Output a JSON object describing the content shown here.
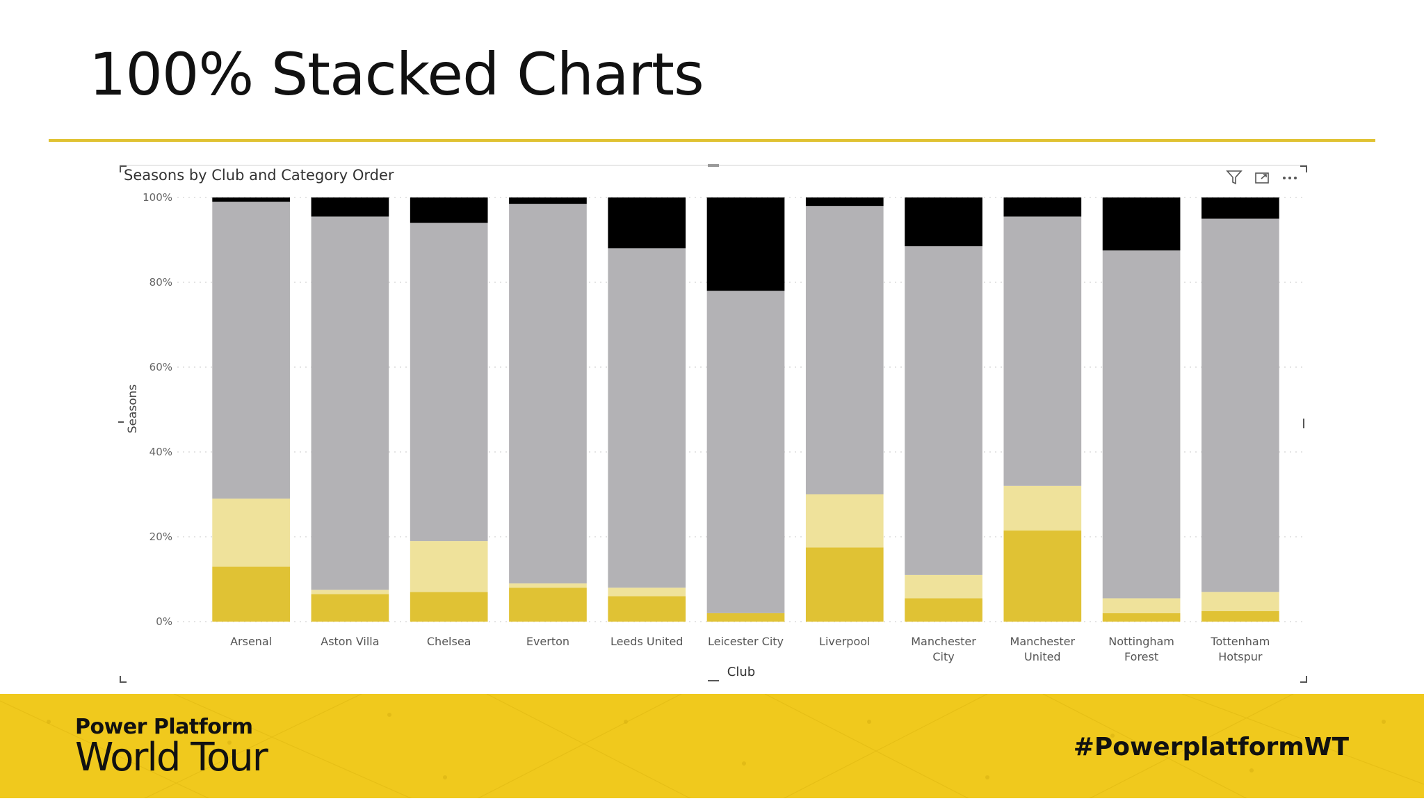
{
  "slide": {
    "title": "100% Stacked Charts",
    "hashtag": "#PowerplatformWT",
    "brand": {
      "line1": "Power Platform",
      "line2": "World Tour"
    },
    "colors": {
      "accent": "#f0c91d",
      "rule": "#e0c232"
    }
  },
  "visual": {
    "title": "Seasons by Club and Category Order",
    "header_icons": [
      "filter-icon",
      "focus-mode-icon",
      "more-options-icon"
    ]
  },
  "chart_data": {
    "type": "bar",
    "stacked": "100%",
    "xlabel": "Club",
    "ylabel": "Seasons",
    "ylim": [
      0,
      100
    ],
    "yticks": [
      "0%",
      "20%",
      "40%",
      "60%",
      "80%",
      "100%"
    ],
    "grid": true,
    "categories": [
      "Arsenal",
      "Aston Villa",
      "Chelsea",
      "Everton",
      "Leeds United",
      "Leicester City",
      "Liverpool",
      "Manchester City",
      "Manchester United",
      "Nottingham Forest",
      "Tottenham Hotspur"
    ],
    "series": [
      {
        "values": [
          13,
          6.5,
          7,
          8,
          6,
          2,
          17.5,
          5.5,
          21.5,
          2,
          2.5
        ],
        "color": "#e0c234"
      },
      {
        "values": [
          16,
          1,
          12,
          1,
          2,
          0,
          12.5,
          5.5,
          10.5,
          3.5,
          4.5
        ],
        "color": "#efe29b"
      },
      {
        "values": [
          70,
          88,
          75,
          89.5,
          80,
          76,
          68,
          77.5,
          63.5,
          82,
          88
        ],
        "color": "#b3b2b5"
      },
      {
        "values": [
          1,
          4.5,
          6,
          1.5,
          12,
          22,
          2,
          11.5,
          4.5,
          12.5,
          5
        ],
        "color": "#000000"
      }
    ]
  }
}
